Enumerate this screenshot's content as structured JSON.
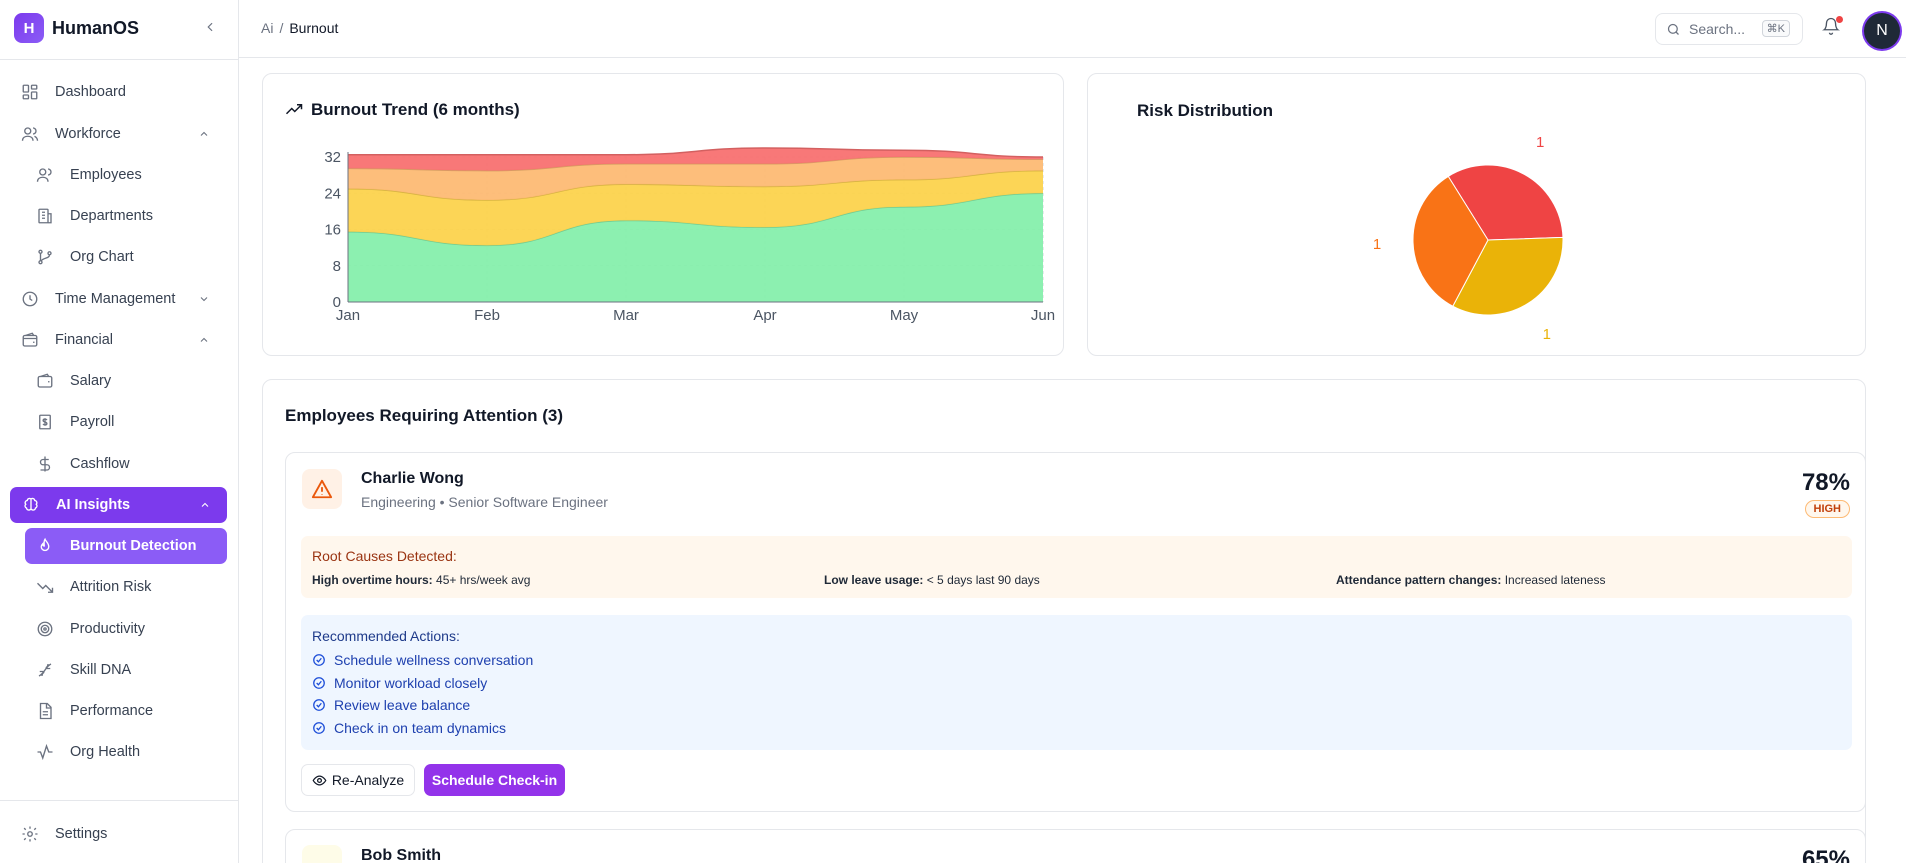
{
  "app": {
    "logo_letter": "H",
    "name": "HumanOS"
  },
  "sidebar": {
    "dashboard": "Dashboard",
    "workforce": "Workforce",
    "employees": "Employees",
    "departments": "Departments",
    "org_chart": "Org Chart",
    "time_management": "Time Management",
    "financial": "Financial",
    "salary": "Salary",
    "payroll": "Payroll",
    "cashflow": "Cashflow",
    "ai_insights": "AI Insights",
    "burnout_detection": "Burnout Detection",
    "attrition_risk": "Attrition Risk",
    "productivity": "Productivity",
    "skill_dna": "Skill DNA",
    "performance": "Performance",
    "org_health": "Org Health",
    "settings": "Settings"
  },
  "header": {
    "breadcrumb_root": "Ai",
    "breadcrumb_sep": "/",
    "breadcrumb_current": "Burnout",
    "search_placeholder": "Search...",
    "search_shortcut": "⌘K",
    "avatar_letter": "N"
  },
  "trend_card": {
    "title": "Burnout Trend (6 months)"
  },
  "risk_card": {
    "title": "Risk Distribution"
  },
  "chart_data": [
    {
      "type": "area",
      "title": "Burnout Trend (6 months)",
      "categories": [
        "Jan",
        "Feb",
        "Mar",
        "Apr",
        "May",
        "Jun"
      ],
      "stacked": true,
      "yticks": [
        0,
        8,
        16,
        24,
        32
      ],
      "ylim": [
        0,
        32
      ],
      "grid": true,
      "series": [
        {
          "values": [
            15.5,
            12.5,
            18,
            16.5,
            21,
            24
          ],
          "color": "#86efac"
        },
        {
          "values": [
            9.5,
            10,
            8,
            9,
            6,
            5
          ],
          "color": "#fcd34d"
        },
        {
          "values": [
            4.5,
            6.5,
            4.5,
            5,
            5,
            2.5
          ],
          "color": "#fdba74"
        },
        {
          "values": [
            3,
            3.5,
            2,
            3.5,
            1.5,
            0.5
          ],
          "color": "#f87171"
        }
      ]
    },
    {
      "type": "pie",
      "title": "Risk Distribution",
      "values": [
        1,
        1,
        1
      ],
      "labels": [
        "1",
        "1",
        "1"
      ],
      "colors": [
        "#ef4444",
        "#eab308",
        "#f97316"
      ]
    }
  ],
  "attention": {
    "title": "Employees Requiring Attention (3)",
    "employees": [
      {
        "name": "Charlie Wong",
        "meta": "Engineering • Senior Software Engineer",
        "score": "78%",
        "level": "HIGH",
        "causes_title": "Root Causes Detected:",
        "causes": [
          {
            "label": "High overtime hours:",
            "value": "45+ hrs/week avg"
          },
          {
            "label": "Low leave usage:",
            "value": "< 5 days last 90 days"
          },
          {
            "label": "Attendance pattern changes:",
            "value": "Increased lateness"
          }
        ],
        "actions_title": "Recommended Actions:",
        "actions": [
          "Schedule wellness conversation",
          "Monitor workload closely",
          "Review leave balance",
          "Check in on team dynamics"
        ],
        "reanalyze_label": "Re-Analyze",
        "checkin_label": "Schedule Check-in"
      },
      {
        "name": "Bob Smith",
        "score": "65%"
      }
    ]
  }
}
